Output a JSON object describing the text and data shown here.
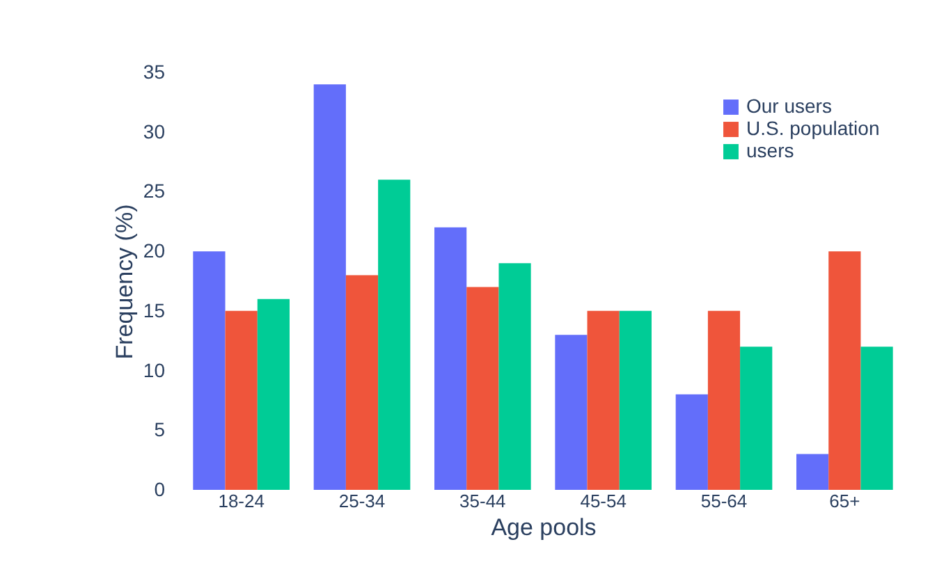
{
  "chart_data": {
    "type": "bar",
    "xlabel": "Age pools",
    "ylabel": "Frequency (%)",
    "categories": [
      "18-24",
      "25-34",
      "35-44",
      "45-54",
      "55-64",
      "65+"
    ],
    "series": [
      {
        "name": "Our users",
        "color": "#636efa",
        "values": [
          20,
          34,
          22,
          13,
          8,
          3
        ]
      },
      {
        "name": "U.S. population",
        "color": "#ef553b",
        "values": [
          15,
          18,
          17,
          15,
          15,
          20
        ]
      },
      {
        "name": "users",
        "color": "#00cc96",
        "values": [
          16,
          26,
          19,
          15,
          12,
          12
        ]
      }
    ],
    "ylim": [
      0,
      35
    ],
    "yticks": [
      0,
      5,
      10,
      15,
      20,
      25,
      30,
      35
    ],
    "grid": false,
    "legend": "top right"
  }
}
